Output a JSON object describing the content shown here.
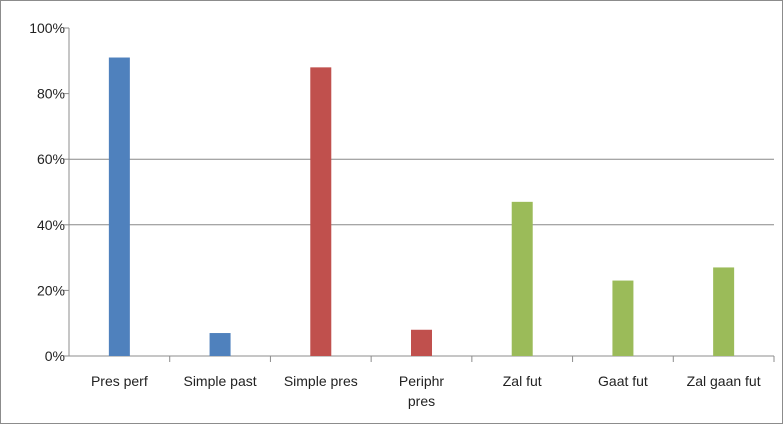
{
  "chart_data": {
    "type": "bar",
    "categories": [
      [
        "Pres perf"
      ],
      [
        "Simple past"
      ],
      [
        "Simple pres"
      ],
      [
        "Periphr",
        "pres"
      ],
      [
        "Zal fut"
      ],
      [
        "Gaat fut"
      ],
      [
        "Zal gaan fut"
      ]
    ],
    "values": [
      91,
      7,
      88,
      8,
      47,
      23,
      27
    ],
    "bar_colors": [
      "#4f81bd",
      "#4f81bd",
      "#c0504d",
      "#c0504d",
      "#9bbb59",
      "#9bbb59",
      "#9bbb59"
    ],
    "ylim": [
      0,
      100
    ],
    "y_ticks": [
      0,
      20,
      40,
      60,
      80,
      100
    ],
    "y_tick_labels": [
      "0%",
      "20%",
      "40%",
      "60%",
      "80%",
      "100%"
    ],
    "gridlines": [
      60,
      40
    ],
    "title": "",
    "xlabel": "",
    "ylabel": ""
  }
}
